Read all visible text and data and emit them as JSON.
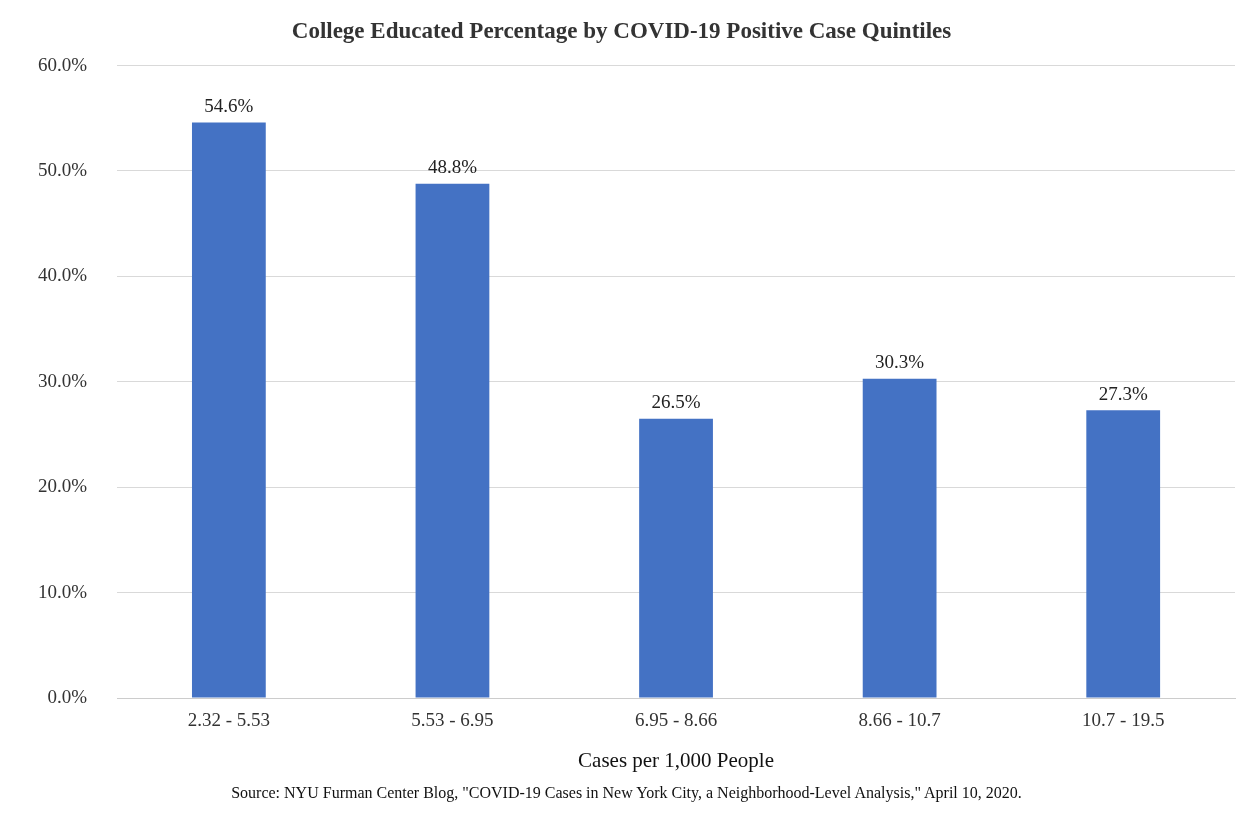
{
  "chart_data": {
    "type": "bar",
    "title": "College Educated Percentage by COVID-19 Positive Case Quintiles",
    "xlabel": "Cases per 1,000 People",
    "categories": [
      "2.32 - 5.53",
      "5.53 - 6.95",
      "6.95 - 8.66",
      "8.66 - 10.7",
      "10.7 - 19.5"
    ],
    "values": [
      54.6,
      48.8,
      26.5,
      30.3,
      27.3
    ],
    "value_labels": [
      "54.6%",
      "48.8%",
      "26.5%",
      "30.3%",
      "27.3%"
    ],
    "color": "#4472c4",
    "ylim": [
      0,
      60
    ],
    "yticks": [
      {
        "value": 0,
        "label": "0.0%"
      },
      {
        "value": 10,
        "label": "10.0%"
      },
      {
        "value": 20,
        "label": "20.0%"
      },
      {
        "value": 30,
        "label": "30.0%"
      },
      {
        "value": 40,
        "label": "40.0%"
      },
      {
        "value": 50,
        "label": "50.0%"
      },
      {
        "value": 60,
        "label": "60.0%"
      }
    ],
    "grid": "y",
    "legend": false,
    "annotations": [
      "Source: NYU Furman Center Blog, \"COVID-19 Cases in New York City, a Neighborhood-Level Analysis,\" April 10, 2020."
    ]
  }
}
